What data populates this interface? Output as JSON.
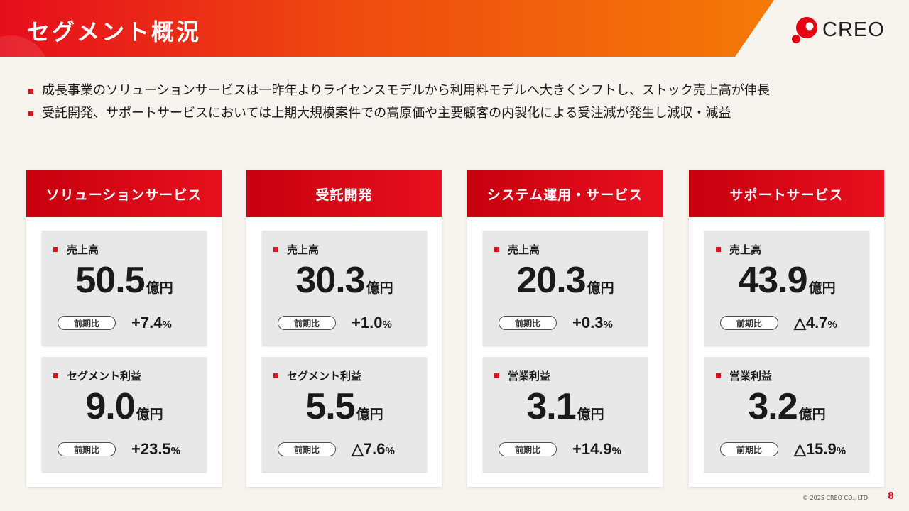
{
  "header": {
    "title": "セグメント概況"
  },
  "logo": {
    "text": "CREO",
    "accent_color": "#e60012"
  },
  "bullets": [
    "成長事業のソリューションサービスは一昨年よりライセンスモデルから利用料モデルへ大きくシフトし、ストック売上高が伸長",
    "受託開発、サポートサービスにおいては上期大規模案件での高原価や主要顧客の内製化による受注減が発生し減収・減益"
  ],
  "comparison_label": "前期比",
  "segments": [
    {
      "name": "ソリューションサービス",
      "metrics": [
        {
          "label": "売上高",
          "value": "50.5",
          "unit": "億円",
          "change": "+7.4",
          "change_unit": "%"
        },
        {
          "label": "セグメント利益",
          "value": "9.0",
          "unit": "億円",
          "change": "+23.5",
          "change_unit": "%"
        }
      ]
    },
    {
      "name": "受託開発",
      "metrics": [
        {
          "label": "売上高",
          "value": "30.3",
          "unit": "億円",
          "change": "+1.0",
          "change_unit": "%"
        },
        {
          "label": "セグメント利益",
          "value": "5.5",
          "unit": "億円",
          "change": "△7.6",
          "change_unit": "%"
        }
      ]
    },
    {
      "name": "システム運用・サービス",
      "metrics": [
        {
          "label": "売上高",
          "value": "20.3",
          "unit": "億円",
          "change": "+0.3",
          "change_unit": "%"
        },
        {
          "label": "営業利益",
          "value": "3.1",
          "unit": "億円",
          "change": "+14.9",
          "change_unit": "%"
        }
      ]
    },
    {
      "name": "サポートサービス",
      "metrics": [
        {
          "label": "売上高",
          "value": "43.9",
          "unit": "億円",
          "change": "△4.7",
          "change_unit": "%"
        },
        {
          "label": "営業利益",
          "value": "3.2",
          "unit": "億円",
          "change": "△15.9",
          "change_unit": "%"
        }
      ]
    }
  ],
  "footer": {
    "copyright": "© 2025 CREO CO., LTD.",
    "page_number": "8"
  }
}
